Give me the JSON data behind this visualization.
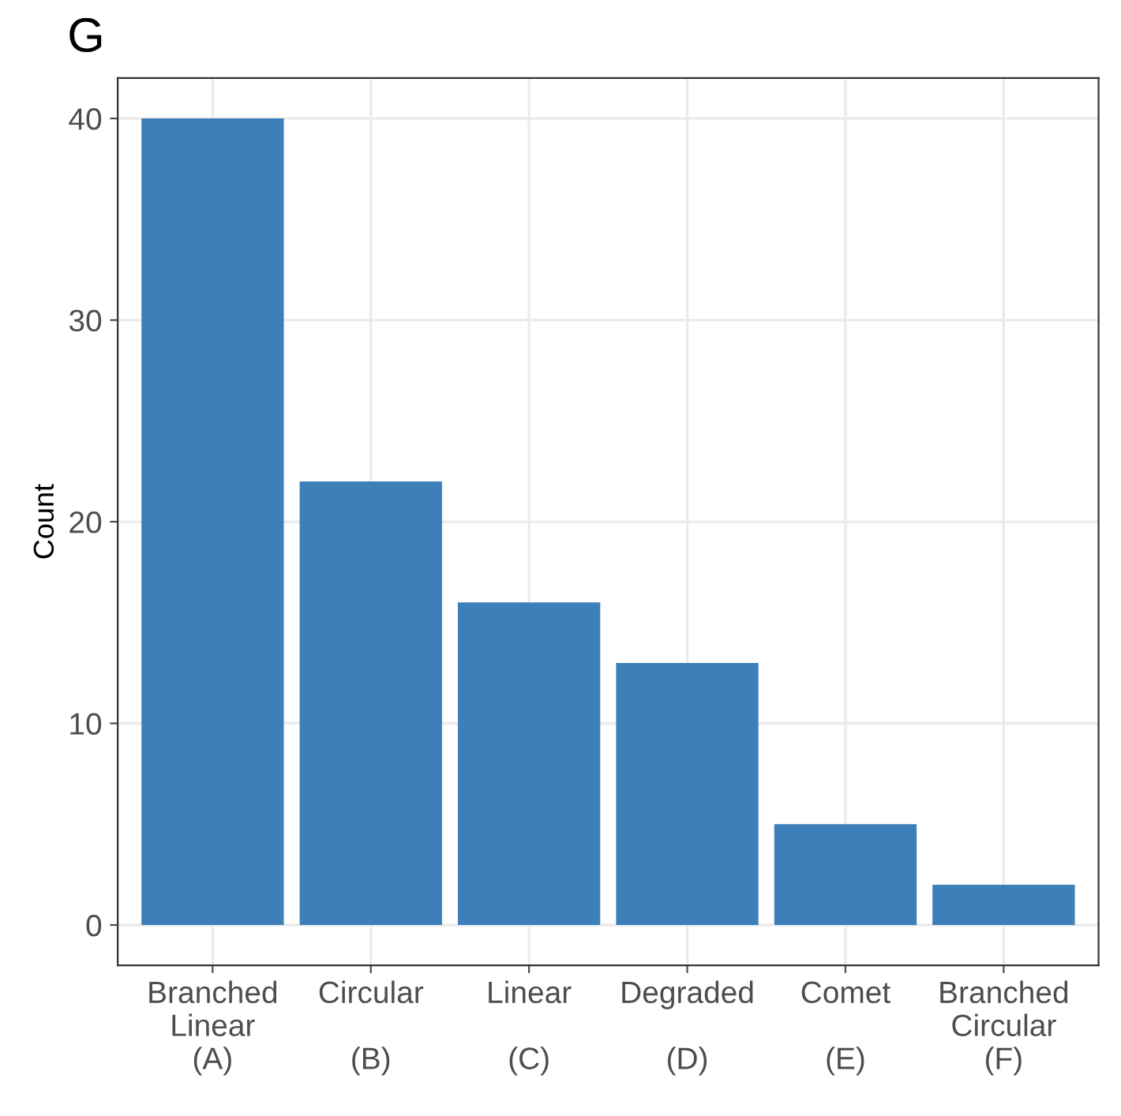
{
  "chart_data": {
    "type": "bar",
    "title": "G",
    "ylabel": "Count",
    "categories": [
      "Branched\nLinear\n(A)",
      "Circular\n\n(B)",
      "Linear\n\n(C)",
      "Degraded\n\n(D)",
      "Comet\n\n(E)",
      "Branched\nCircular\n(F)"
    ],
    "values": [
      40,
      22,
      16,
      13,
      5,
      2
    ],
    "color": "#3d80b9",
    "ylim": [
      -2,
      42
    ],
    "yticks": [
      0,
      10,
      20,
      30,
      40
    ],
    "grid": true
  }
}
